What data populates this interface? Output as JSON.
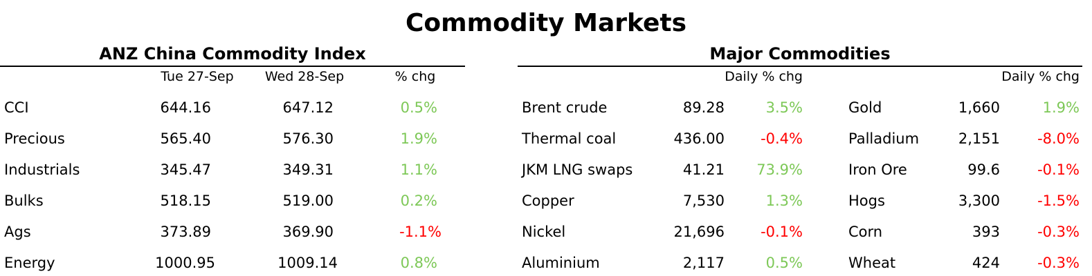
{
  "title": "Commodity Markets",
  "colors": {
    "positive": "#7dc857",
    "negative": "#ff0000",
    "text": "#000000"
  },
  "index": {
    "heading": "ANZ China Commodity Index",
    "columns": [
      "Tue 27-Sep",
      "Wed 28-Sep",
      "% chg"
    ],
    "rows": [
      {
        "name": "CCI",
        "prev": "644.16",
        "curr": "647.12",
        "chg": "0.5%"
      },
      {
        "name": "Precious",
        "prev": "565.40",
        "curr": "576.30",
        "chg": "1.9%"
      },
      {
        "name": "Industrials",
        "prev": "345.47",
        "curr": "349.31",
        "chg": "1.1%"
      },
      {
        "name": "Bulks",
        "prev": "518.15",
        "curr": "519.00",
        "chg": "0.2%"
      },
      {
        "name": "Ags",
        "prev": "373.89",
        "curr": "369.90",
        "chg": "-1.1%"
      },
      {
        "name": "Energy",
        "prev": "1000.95",
        "curr": "1009.14",
        "chg": "0.8%"
      }
    ]
  },
  "major": {
    "heading": "Major Commodities",
    "left_header": "Daily % chg",
    "right_header": "Daily % chg",
    "left": [
      {
        "name": "Brent crude",
        "price": "89.28",
        "chg": "3.5%"
      },
      {
        "name": "Thermal coal",
        "price": "436.00",
        "chg": "-0.4%"
      },
      {
        "name": "JKM LNG swaps",
        "price": "41.21",
        "chg": "73.9%"
      },
      {
        "name": "Copper",
        "price": "7,530",
        "chg": "1.3%"
      },
      {
        "name": "Nickel",
        "price": "21,696",
        "chg": "-0.1%"
      },
      {
        "name": "Aluminium",
        "price": "2,117",
        "chg": "0.5%"
      }
    ],
    "right": [
      {
        "name": "Gold",
        "price": "1,660",
        "chg": "1.9%"
      },
      {
        "name": "Palladium",
        "price": "2,151",
        "chg": "-8.0%"
      },
      {
        "name": "Iron Ore",
        "price": "99.6",
        "chg": "-0.1%"
      },
      {
        "name": "Hogs",
        "price": "3,300",
        "chg": "-1.5%"
      },
      {
        "name": "Corn",
        "price": "393",
        "chg": "-0.3%"
      },
      {
        "name": "Wheat",
        "price": "424",
        "chg": "-0.3%"
      }
    ]
  }
}
